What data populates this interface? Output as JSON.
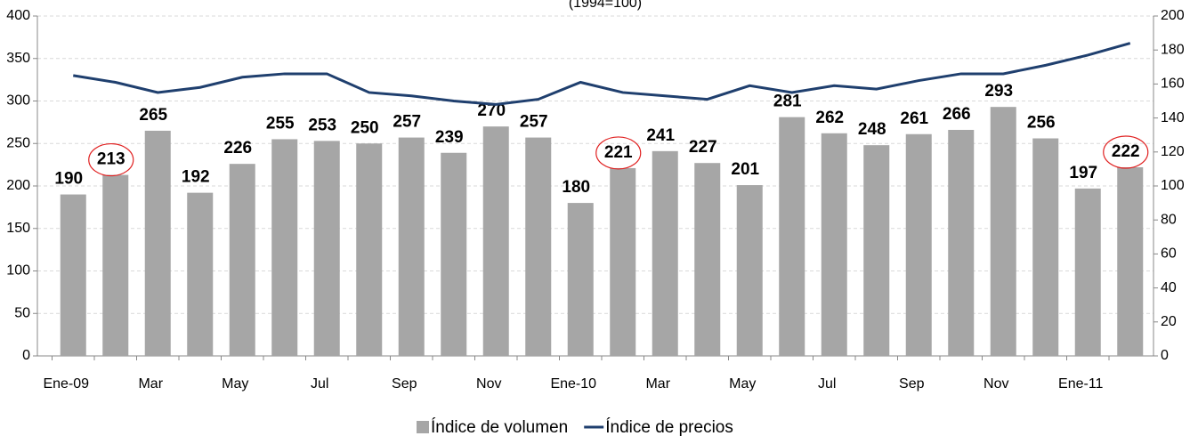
{
  "chart_data": {
    "type": "bar",
    "subtitle": "(1994=100)",
    "categories": [
      "Ene-09",
      null,
      "Mar",
      null,
      "May",
      null,
      "Jul",
      null,
      "Sep",
      null,
      "Nov",
      null,
      "Ene-10",
      null,
      "Mar",
      null,
      "May",
      null,
      "Jul",
      null,
      "Sep",
      null,
      "Nov",
      null,
      "Ene-11",
      null
    ],
    "series": [
      {
        "name": "Índice de volumen",
        "color": "#a6a6a6",
        "type": "bar",
        "values": [
          190,
          213,
          265,
          192,
          226,
          255,
          253,
          250,
          257,
          239,
          270,
          257,
          180,
          221,
          241,
          227,
          201,
          281,
          262,
          248,
          261,
          266,
          293,
          256,
          197,
          222
        ]
      },
      {
        "name": "Índice de precios",
        "color": "#1f3f6e",
        "type": "line",
        "axis": "y2",
        "values": [
          165,
          161,
          155,
          158,
          164,
          166,
          166,
          155,
          153,
          150,
          148,
          151,
          161,
          155,
          153,
          151,
          159,
          155,
          159,
          157,
          162,
          166,
          166,
          171,
          177,
          184
        ]
      }
    ],
    "ylim": [
      0,
      400
    ],
    "yticks": [
      0,
      50,
      100,
      150,
      200,
      250,
      300,
      350,
      400
    ],
    "y2lim": [
      0,
      200
    ],
    "y2ticks": [
      0,
      20,
      40,
      60,
      80,
      100,
      120,
      140,
      160,
      180,
      200
    ],
    "grid": true,
    "legend": "bottom"
  }
}
